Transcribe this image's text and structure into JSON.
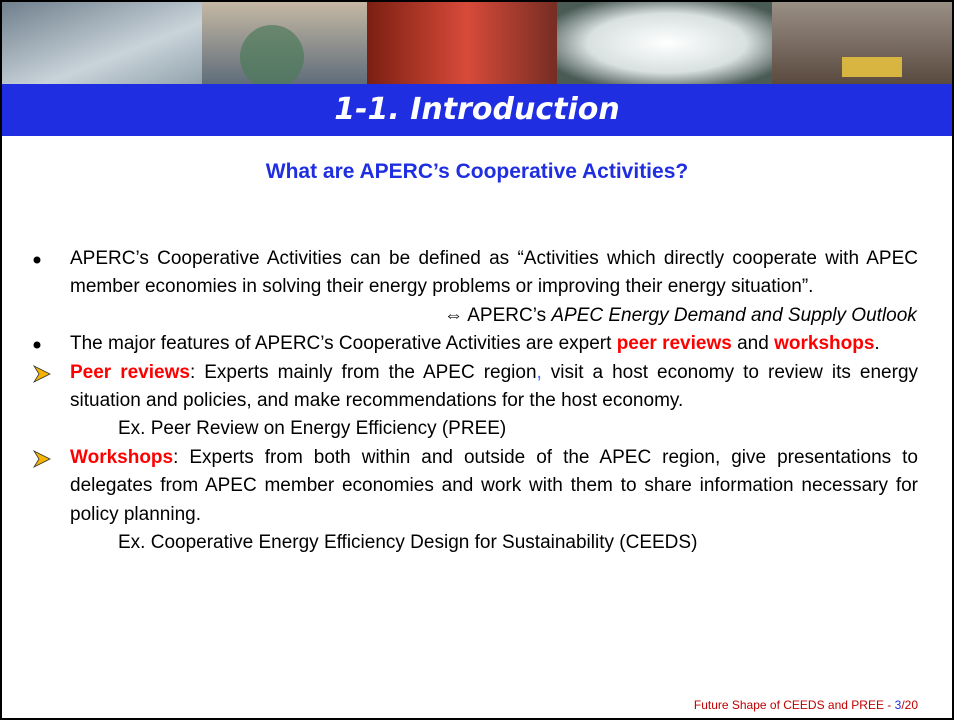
{
  "header": {
    "title": "1-1. Introduction"
  },
  "subtitle": "What are APERC’s Cooperative Activities?",
  "paragraphs": [
    {
      "kind": "bullet",
      "runs": [
        {
          "text": "APERC’s  Cooperative Activities can be defined as “Activities which directly cooperate with APEC member economies in solving their energy problems or improving their energy situation”.",
          "style": "plain"
        }
      ]
    },
    {
      "kind": "reference",
      "runs": [
        {
          "text": "⇔ APERC’s ",
          "style": "plain"
        },
        {
          "text": "APEC Energy Demand and Supply Outlook",
          "style": "italic"
        }
      ]
    },
    {
      "kind": "bullet",
      "runs": [
        {
          "text": "The major features of APERC’s  Cooperative Activities are expert ",
          "style": "plain"
        },
        {
          "text": "peer reviews",
          "style": "red-bold"
        },
        {
          "text": " and ",
          "style": "plain"
        },
        {
          "text": "workshops",
          "style": "red-bold"
        },
        {
          "text": ".",
          "style": "plain"
        }
      ]
    },
    {
      "kind": "arrow",
      "runs": [
        {
          "text": "Peer reviews",
          "style": "red-bold"
        },
        {
          "text": ": Experts mainly from the APEC region",
          "style": "plain"
        },
        {
          "text": ",",
          "style": "blue"
        },
        {
          "text": " visit a host economy to review its energy situation and policies, and make recommendations for the host economy.",
          "style": "plain"
        }
      ]
    },
    {
      "kind": "example",
      "runs": [
        {
          "text": "Ex. Peer Review on Energy Efficiency (PREE)",
          "style": "plain"
        }
      ]
    },
    {
      "kind": "arrow",
      "runs": [
        {
          "text": "Workshops",
          "style": "red-bold"
        },
        {
          "text": ": Experts from both within and outside of the APEC region, give presentations to delegates from APEC member economies and work with them to share information  necessary for policy planning.",
          "style": "plain"
        }
      ]
    },
    {
      "kind": "example",
      "runs": [
        {
          "text": "Ex. Cooperative Energy Efficiency Design for Sustainability (CEEDS)",
          "style": "plain"
        }
      ]
    }
  ],
  "footer": [
    {
      "text": "Future Shape of CEEDS and PREE - ",
      "style": "red"
    },
    {
      "text": "3",
      "style": "blue"
    },
    {
      "text": "/20",
      "style": "red"
    }
  ]
}
